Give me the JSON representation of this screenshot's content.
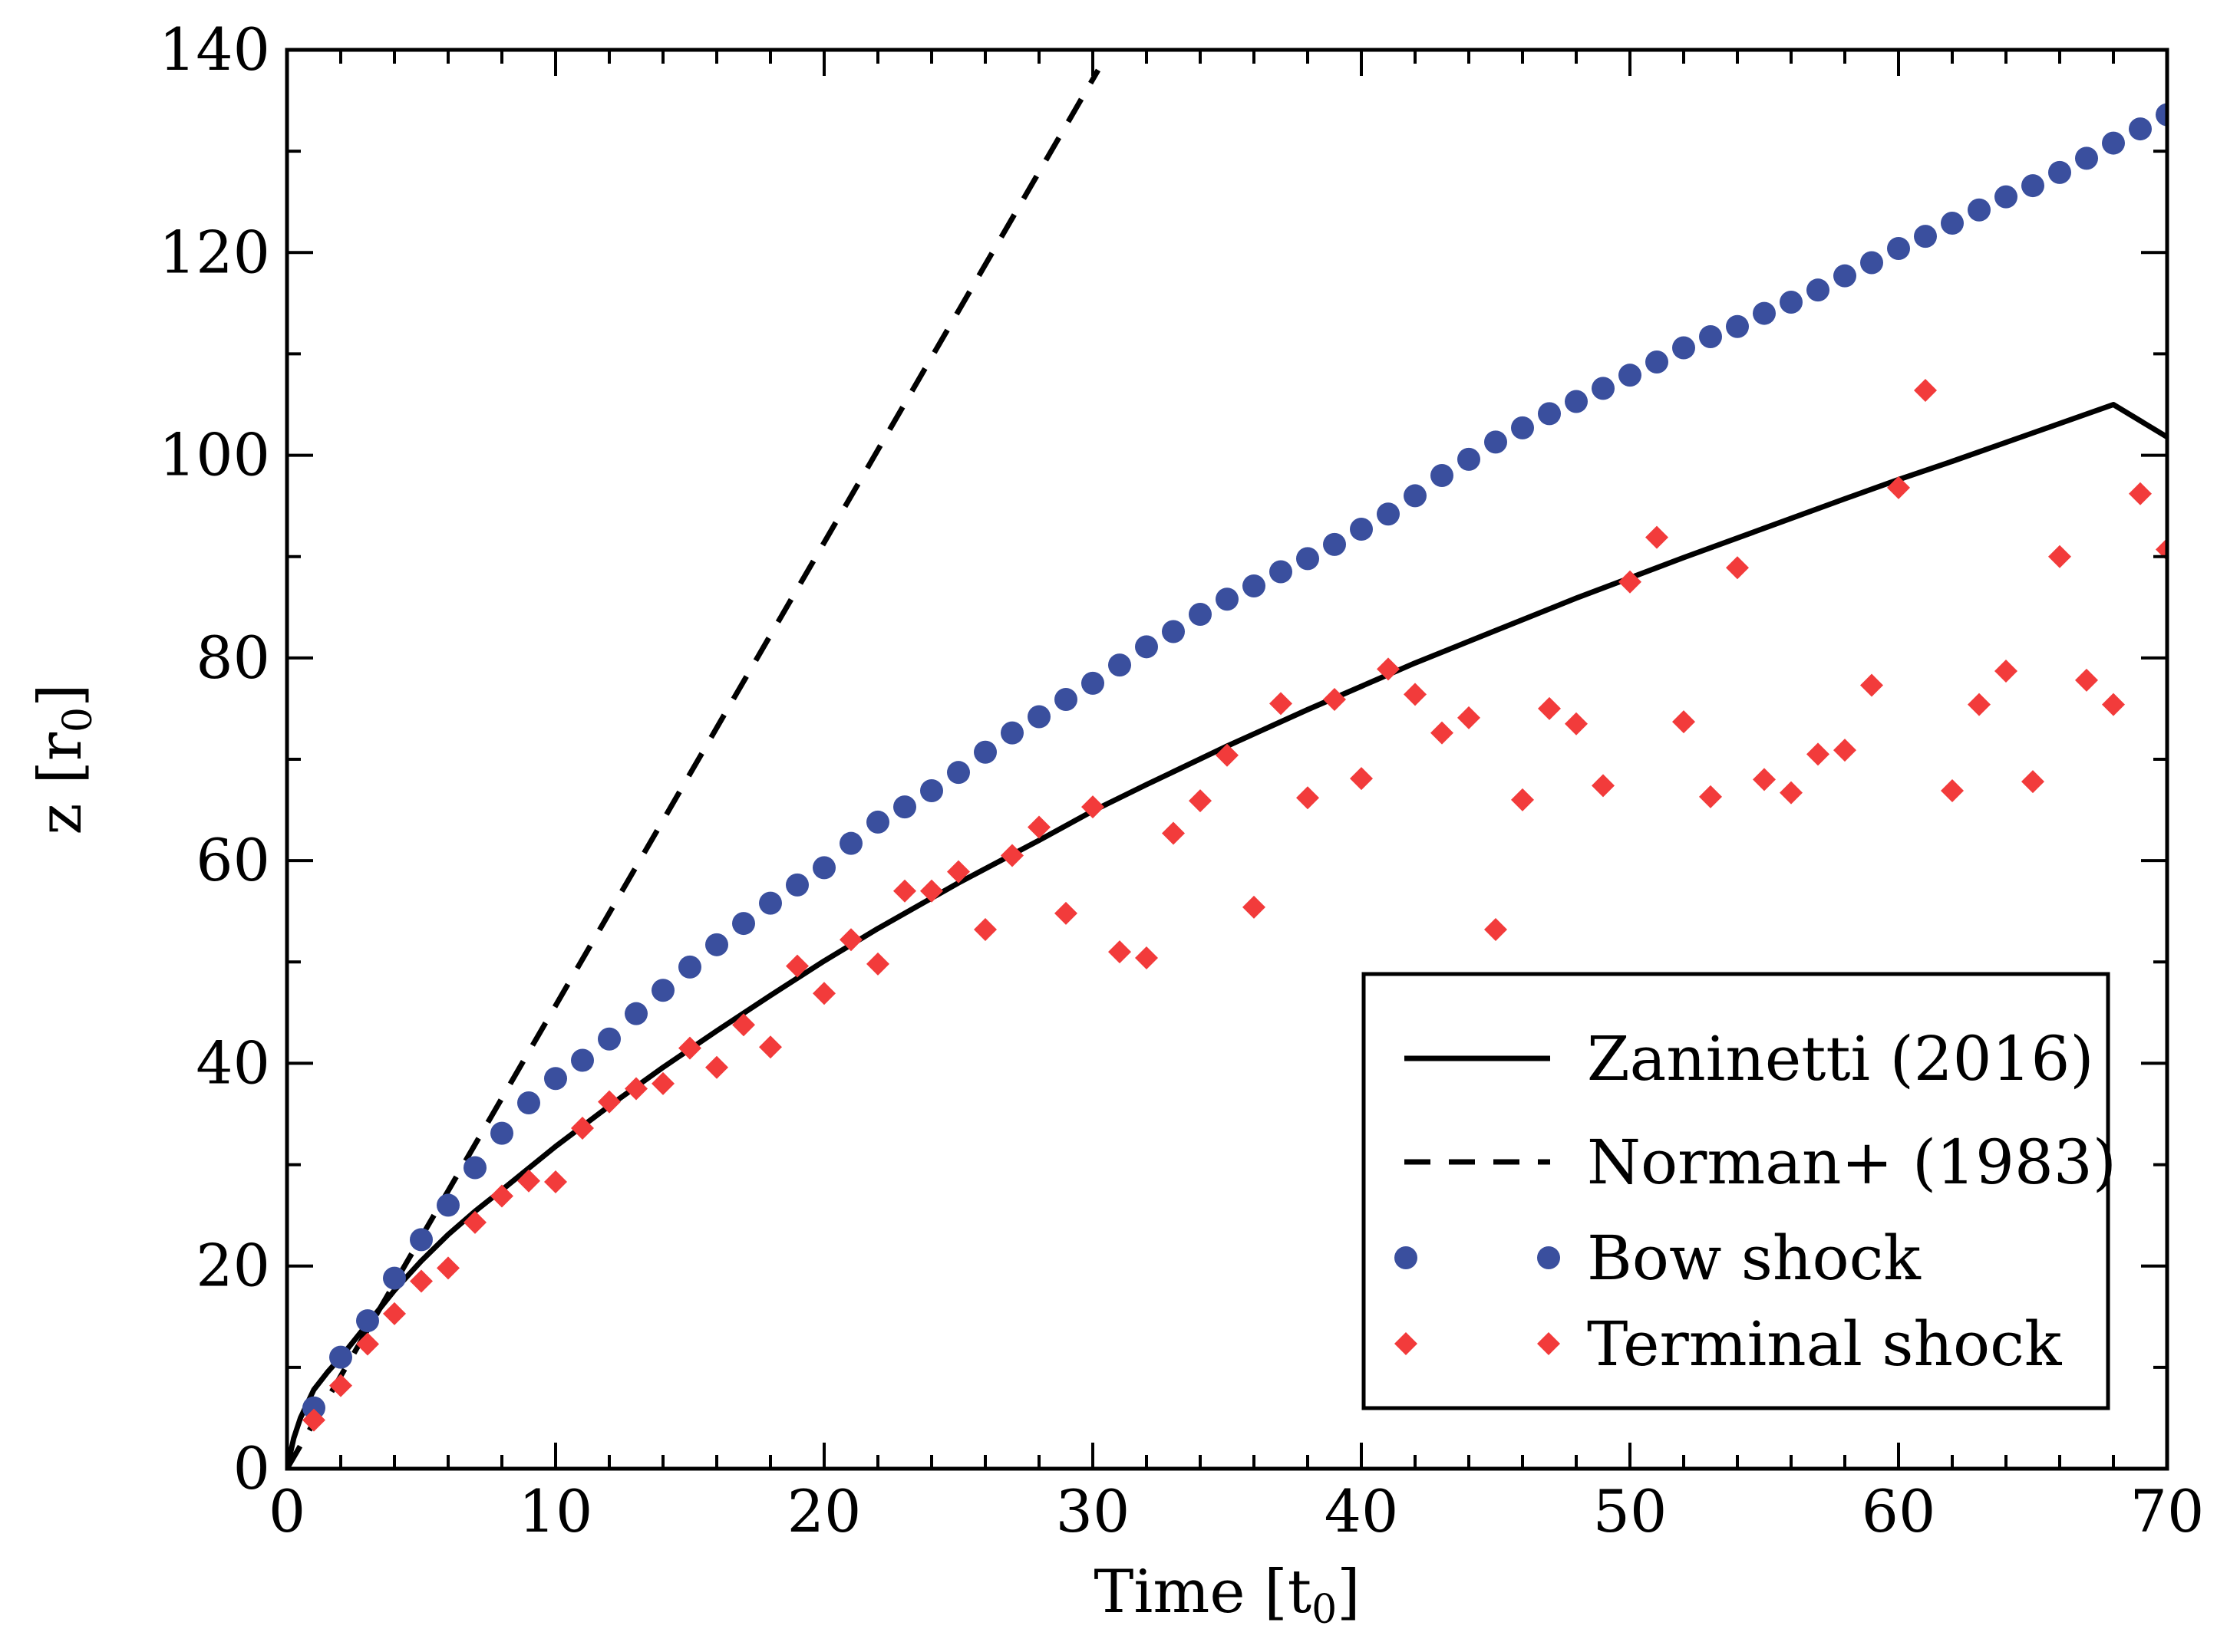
{
  "chart_data": {
    "type": "scatter",
    "title": "",
    "xlabel": "Time [t",
    "xlabel_sub": "0",
    "xlabel_end": "]",
    "ylabel": "z [r",
    "ylabel_sub": "0",
    "ylabel_end": "]",
    "xlim": [
      0,
      70
    ],
    "ylim": [
      0,
      140
    ],
    "xticks": [
      0,
      10,
      20,
      30,
      40,
      50,
      60,
      70
    ],
    "yticks": [
      0,
      20,
      40,
      60,
      80,
      100,
      120,
      140
    ],
    "xtick_labels": [
      "0",
      "10",
      "20",
      "30",
      "40",
      "50",
      "60",
      "70"
    ],
    "ytick_labels": [
      "0",
      "20",
      "40",
      "60",
      "80",
      "100",
      "120",
      "140"
    ],
    "grid": false,
    "legend_position": "bottom-right",
    "colors": {
      "zaninetti": "#000000",
      "norman": "#000000",
      "bow": "#3a4f9e",
      "terminal": "#f23b3b"
    },
    "series": [
      {
        "name": "Zaninetti (2016)",
        "style": "solid-line",
        "x": [
          0,
          0.25,
          0.5,
          1,
          1.5,
          2,
          3,
          4,
          5,
          6,
          7,
          8,
          10,
          12,
          14,
          16,
          18,
          20,
          22,
          25,
          28,
          30,
          32,
          35,
          38,
          40,
          42,
          45,
          48,
          50,
          52,
          55,
          58,
          60,
          62,
          65,
          68,
          70
        ],
        "y": [
          0,
          3.0,
          5.0,
          7.8,
          9.5,
          11.0,
          14.3,
          17.6,
          20.5,
          23.1,
          25.4,
          27.5,
          31.8,
          35.8,
          39.6,
          43.2,
          46.7,
          50.1,
          53.3,
          57.8,
          62.0,
          64.9,
          67.5,
          71.3,
          74.9,
          77.2,
          79.5,
          82.7,
          85.9,
          87.9,
          89.9,
          92.8,
          95.7,
          97.6,
          99.4,
          102.2,
          105.0,
          101.8
        ]
      },
      {
        "name": "Norman+ (1983)",
        "style": "dashed-line",
        "x": [
          0,
          30.2
        ],
        "y": [
          0,
          138
        ]
      },
      {
        "name": "Bow shock",
        "style": "circle",
        "x": [
          1,
          2,
          3,
          4,
          5,
          6,
          7,
          8,
          9,
          10,
          11,
          12,
          13,
          14,
          15,
          16,
          17,
          18,
          19,
          20,
          21,
          22,
          23,
          24,
          25,
          26,
          27,
          28,
          29,
          30,
          31,
          32,
          33,
          34,
          35,
          36,
          37,
          38,
          39,
          40,
          41,
          42,
          43,
          44,
          45,
          46,
          47,
          48,
          49,
          50,
          51,
          52,
          53,
          54,
          55,
          56,
          57,
          58,
          59,
          60,
          61,
          62,
          63,
          64,
          65,
          66,
          67,
          68,
          69,
          70
        ],
        "y": [
          6.0,
          11.0,
          14.6,
          18.8,
          22.6,
          26.0,
          29.7,
          33.1,
          36.1,
          38.5,
          40.3,
          42.4,
          44.9,
          47.2,
          49.5,
          51.7,
          53.8,
          55.8,
          57.6,
          59.3,
          61.7,
          63.8,
          65.3,
          66.9,
          68.7,
          70.7,
          72.6,
          74.2,
          75.9,
          77.5,
          79.3,
          81.1,
          82.6,
          84.3,
          85.8,
          87.1,
          88.5,
          89.8,
          91.2,
          92.7,
          94.2,
          96.0,
          98.0,
          99.6,
          101.3,
          102.7,
          104.1,
          105.3,
          106.6,
          107.9,
          109.2,
          110.6,
          111.7,
          112.7,
          114.0,
          115.1,
          116.3,
          117.7,
          119.0,
          120.4,
          121.6,
          122.9,
          124.2,
          125.5,
          126.6,
          127.9,
          129.3,
          130.8,
          132.2,
          133.6
        ]
      },
      {
        "name": "Terminal shock",
        "style": "diamond",
        "x": [
          1,
          2,
          3,
          4,
          5,
          6,
          7,
          8,
          9,
          10,
          11,
          12,
          13,
          14,
          15,
          16,
          17,
          18,
          19,
          20,
          21,
          22,
          23,
          24,
          25,
          26,
          27,
          28,
          29,
          30,
          31,
          32,
          33,
          34,
          35,
          36,
          37,
          38,
          39,
          40,
          41,
          42,
          43,
          44,
          45,
          46,
          47,
          48,
          49,
          50,
          51,
          52,
          53,
          54,
          55,
          56,
          57,
          58,
          59,
          60,
          61,
          62,
          63,
          64,
          65,
          66,
          67,
          68,
          69,
          70
        ],
        "y": [
          4.8,
          8.2,
          12.3,
          15.3,
          18.5,
          19.8,
          24.3,
          26.9,
          28.4,
          28.3,
          33.6,
          36.2,
          37.5,
          38.0,
          41.5,
          39.6,
          43.8,
          41.6,
          49.6,
          46.9,
          52.2,
          49.8,
          57.0,
          57.0,
          58.9,
          53.2,
          60.5,
          63.3,
          54.8,
          65.3,
          51.0,
          50.4,
          62.7,
          65.9,
          70.4,
          55.4,
          75.5,
          66.2,
          75.9,
          68.1,
          78.9,
          76.4,
          72.6,
          74.1,
          53.2,
          66.0,
          75.0,
          73.5,
          67.4,
          87.5,
          91.9,
          73.7,
          66.3,
          88.9,
          68.0,
          66.7,
          70.5,
          70.9,
          77.3,
          96.8,
          106.4,
          66.9,
          75.4,
          78.7,
          67.8,
          90.0,
          77.8,
          75.4,
          96.2,
          90.7
        ]
      }
    ]
  }
}
